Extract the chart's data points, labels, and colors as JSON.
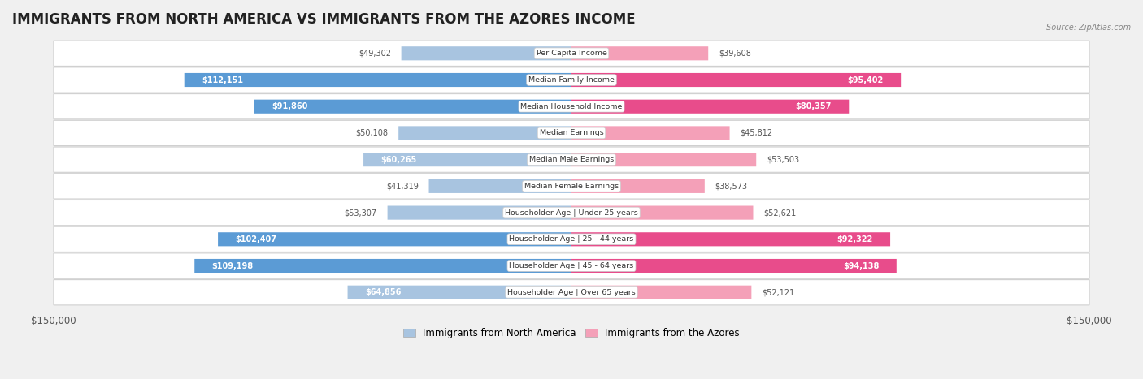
{
  "title": "IMMIGRANTS FROM NORTH AMERICA VS IMMIGRANTS FROM THE AZORES INCOME",
  "source": "Source: ZipAtlas.com",
  "categories": [
    "Per Capita Income",
    "Median Family Income",
    "Median Household Income",
    "Median Earnings",
    "Median Male Earnings",
    "Median Female Earnings",
    "Householder Age | Under 25 years",
    "Householder Age | 25 - 44 years",
    "Householder Age | 45 - 64 years",
    "Householder Age | Over 65 years"
  ],
  "north_america_values": [
    49302,
    112151,
    91860,
    50108,
    60265,
    41319,
    53307,
    102407,
    109198,
    64856
  ],
  "azores_values": [
    39608,
    95402,
    80357,
    45812,
    53503,
    38573,
    52621,
    92322,
    94138,
    52121
  ],
  "north_america_labels": [
    "$49,302",
    "$112,151",
    "$91,860",
    "$50,108",
    "$60,265",
    "$41,319",
    "$53,307",
    "$102,407",
    "$109,198",
    "$64,856"
  ],
  "azores_labels": [
    "$39,608",
    "$95,402",
    "$80,357",
    "$45,812",
    "$53,503",
    "$38,573",
    "$52,621",
    "$92,322",
    "$94,138",
    "$52,121"
  ],
  "na_color_light": "#a8c4e0",
  "na_color_dark": "#5b9bd5",
  "az_color_light": "#f4a0b8",
  "az_color_dark": "#e84c8b",
  "label_color_outer": "#555555",
  "max_value": 150000,
  "legend_na": "Immigrants from North America",
  "legend_az": "Immigrants from the Azores",
  "background_color": "#f0f0f0",
  "row_bg_color": "#ffffff",
  "title_fontsize": 12,
  "bar_height": 0.52,
  "inner_label_threshold": 60000,
  "na_inner_label_threshold": 60000,
  "az_inner_label_threshold": 60000
}
